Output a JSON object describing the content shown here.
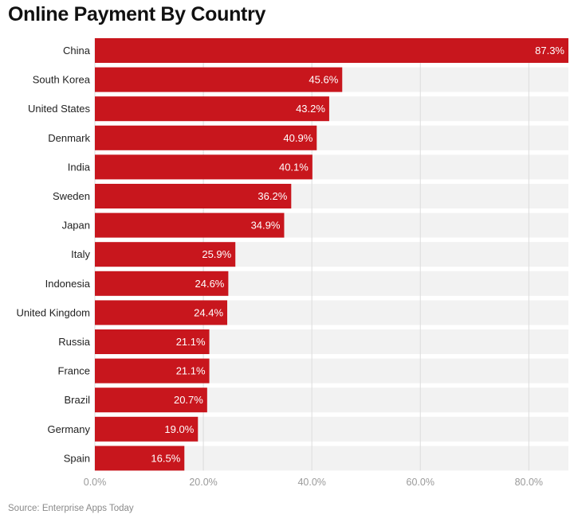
{
  "chart_data": {
    "type": "bar",
    "orientation": "horizontal",
    "title": "Online Payment By Country",
    "categories": [
      "China",
      "South Korea",
      "United States",
      "Denmark",
      "India",
      "Sweden",
      "Japan",
      "Italy",
      "Indonesia",
      "United Kingdom",
      "Russia",
      "France",
      "Brazil",
      "Germany",
      "Spain"
    ],
    "values": [
      87.3,
      45.6,
      43.2,
      40.9,
      40.1,
      36.2,
      34.9,
      25.9,
      24.6,
      24.4,
      21.1,
      21.1,
      20.7,
      19.0,
      16.5
    ],
    "value_labels": [
      "87.3%",
      "45.6%",
      "43.2%",
      "40.9%",
      "40.1%",
      "36.2%",
      "34.9%",
      "25.9%",
      "24.6%",
      "24.4%",
      "21.1%",
      "21.1%",
      "20.7%",
      "19.0%",
      "16.5%"
    ],
    "xticks": [
      0,
      20,
      40,
      60,
      80
    ],
    "xtick_labels": [
      "0.0%",
      "20.0%",
      "40.0%",
      "60.0%",
      "80.0%"
    ],
    "xlim": [
      0,
      87.3
    ],
    "xlabel": "",
    "ylabel": "",
    "grid": true,
    "legend": "none",
    "colors": {
      "bar": "#c8161d",
      "row_background": "#f2f2f2",
      "gridline": "#dcdcdc",
      "value_label": "#ffffff",
      "category_label": "#222222",
      "tick_label": "#9a9a9a"
    },
    "source": "Source: Enterprise Apps Today"
  }
}
